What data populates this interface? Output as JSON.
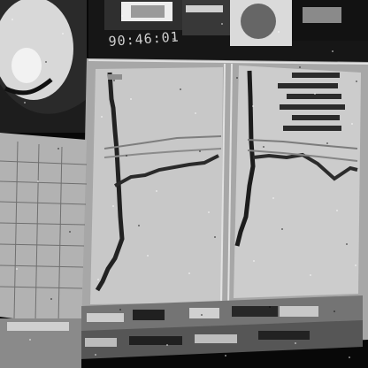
{
  "scene": {
    "description_kind": "photo",
    "clock_text": "90:46:01"
  }
}
